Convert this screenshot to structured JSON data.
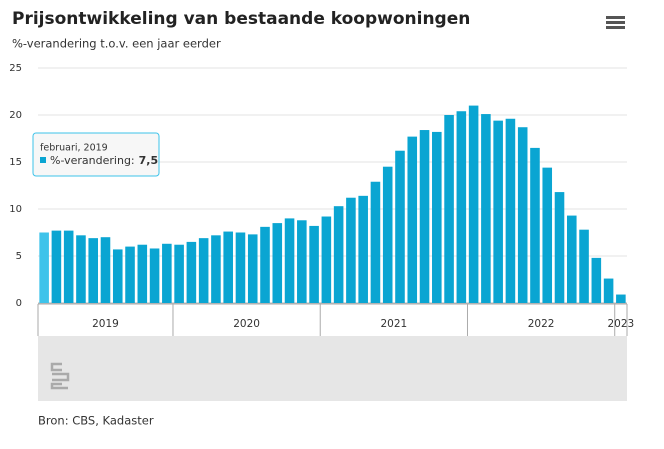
{
  "chart_data": {
    "type": "bar",
    "title": "Prijsontwikkeling van bestaande koopwoningen",
    "subtitle": "%-verandering t.o.v. een jaar eerder",
    "source": "Bron: CBS, Kadaster",
    "series_name": "%-verandering",
    "color": "#0aa5d2",
    "highlight_color": "#3ec3ea",
    "values": [
      7.5,
      7.7,
      7.7,
      7.2,
      6.9,
      7.0,
      5.7,
      6.0,
      6.2,
      5.8,
      6.3,
      6.2,
      6.5,
      6.9,
      7.2,
      7.6,
      7.5,
      7.3,
      8.1,
      8.5,
      9.0,
      8.8,
      8.2,
      9.2,
      10.3,
      11.2,
      11.4,
      12.9,
      14.5,
      16.2,
      17.7,
      18.4,
      18.2,
      20.0,
      20.4,
      21.0,
      20.1,
      19.4,
      19.6,
      18.7,
      16.5,
      14.4,
      11.8,
      9.3,
      7.8,
      4.8,
      2.6,
      0.9
    ],
    "year_labels": [
      "2019",
      "2020",
      "2021",
      "2022",
      "2023"
    ],
    "ylim": [
      0,
      25
    ],
    "yticks": [
      0,
      5,
      10,
      15,
      20,
      25
    ],
    "grid": true,
    "tooltip": {
      "title": "februari, 2019",
      "label": "%-verandering:",
      "value_label": "7,5"
    }
  }
}
